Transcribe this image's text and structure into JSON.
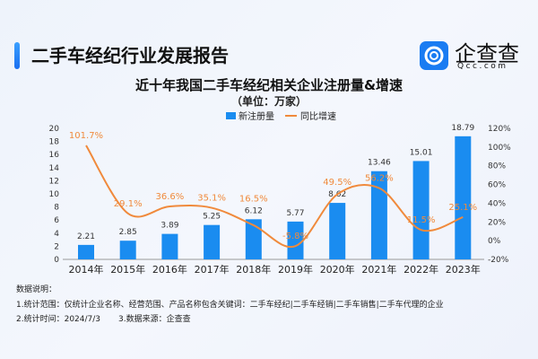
{
  "header": {
    "title": "二手车经纪行业发展报告",
    "logo_text": "企查查",
    "logo_sub": "Qcc.com"
  },
  "chart_data": {
    "type": "bar+line",
    "title": "近十年我国二手车经纪相关企业注册量&增速",
    "subtitle": "（单位：万家）",
    "categories": [
      "2014年",
      "2015年",
      "2016年",
      "2017年",
      "2018年",
      "2019年",
      "2020年",
      "2021年",
      "2022年",
      "2023年"
    ],
    "series": [
      {
        "name": "新注册量",
        "type": "bar",
        "color": "#1a8cf0",
        "values": [
          2.21,
          2.85,
          3.89,
          5.25,
          6.12,
          5.77,
          8.62,
          13.46,
          15.01,
          18.79
        ],
        "labels": [
          "2.21",
          "2.85",
          "3.89",
          "5.25",
          "6.12",
          "5.77",
          "8.62",
          "13.46",
          "15.01",
          "18.79"
        ]
      },
      {
        "name": "同比增速",
        "type": "line",
        "axis": "right",
        "color": "#f08a3c",
        "values": [
          101.7,
          29.1,
          36.6,
          35.1,
          16.5,
          -5.8,
          49.5,
          56.2,
          11.5,
          25.1
        ],
        "labels": [
          "101.7%",
          "29.1%",
          "36.6%",
          "35.1%",
          "16.5%",
          "-5.8%",
          "49.5%",
          "56.2%",
          "11.5%",
          "25.1%"
        ]
      }
    ],
    "ylim": [
      0,
      20
    ],
    "yticks": [
      "0",
      "2",
      "4",
      "6",
      "8",
      "10",
      "12",
      "14",
      "16",
      "18",
      "20"
    ],
    "y2lim": [
      -20,
      120
    ],
    "y2ticks": [
      "-20%",
      "0%",
      "20%",
      "40%",
      "60%",
      "80%",
      "100%",
      "120%"
    ],
    "legend": "top",
    "grid": false
  },
  "notes": {
    "heading": "数据说明：",
    "line1": "1.统计范围：仅统计企业名称、经营范围、产品名称包含关键词：二手车经纪|二手车经销|二手车销售|二手车代理的企业",
    "line2a": "2.统计时间：2024/7/3",
    "line2b": "3.数据来源：企查查"
  }
}
